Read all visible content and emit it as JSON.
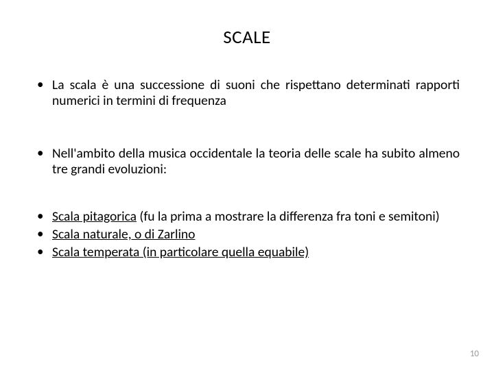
{
  "title": "SCALE",
  "bullets": {
    "b1": "La scala è una successione di suoni che rispettano determinati rapporti numerici in termini di frequenza",
    "b2": "Nell'ambito della musica occidentale la teoria delle scale ha subito almeno tre grandi evoluzioni:",
    "b3_underlined": "Scala pitagorica",
    "b3_rest": " (fu la prima a mostrare la differenza fra toni e semitoni)",
    "b4": "Scala naturale, o di Zarlino",
    "b5": "Scala temperata (in particolare quella equabile)"
  },
  "page_number": "10"
}
